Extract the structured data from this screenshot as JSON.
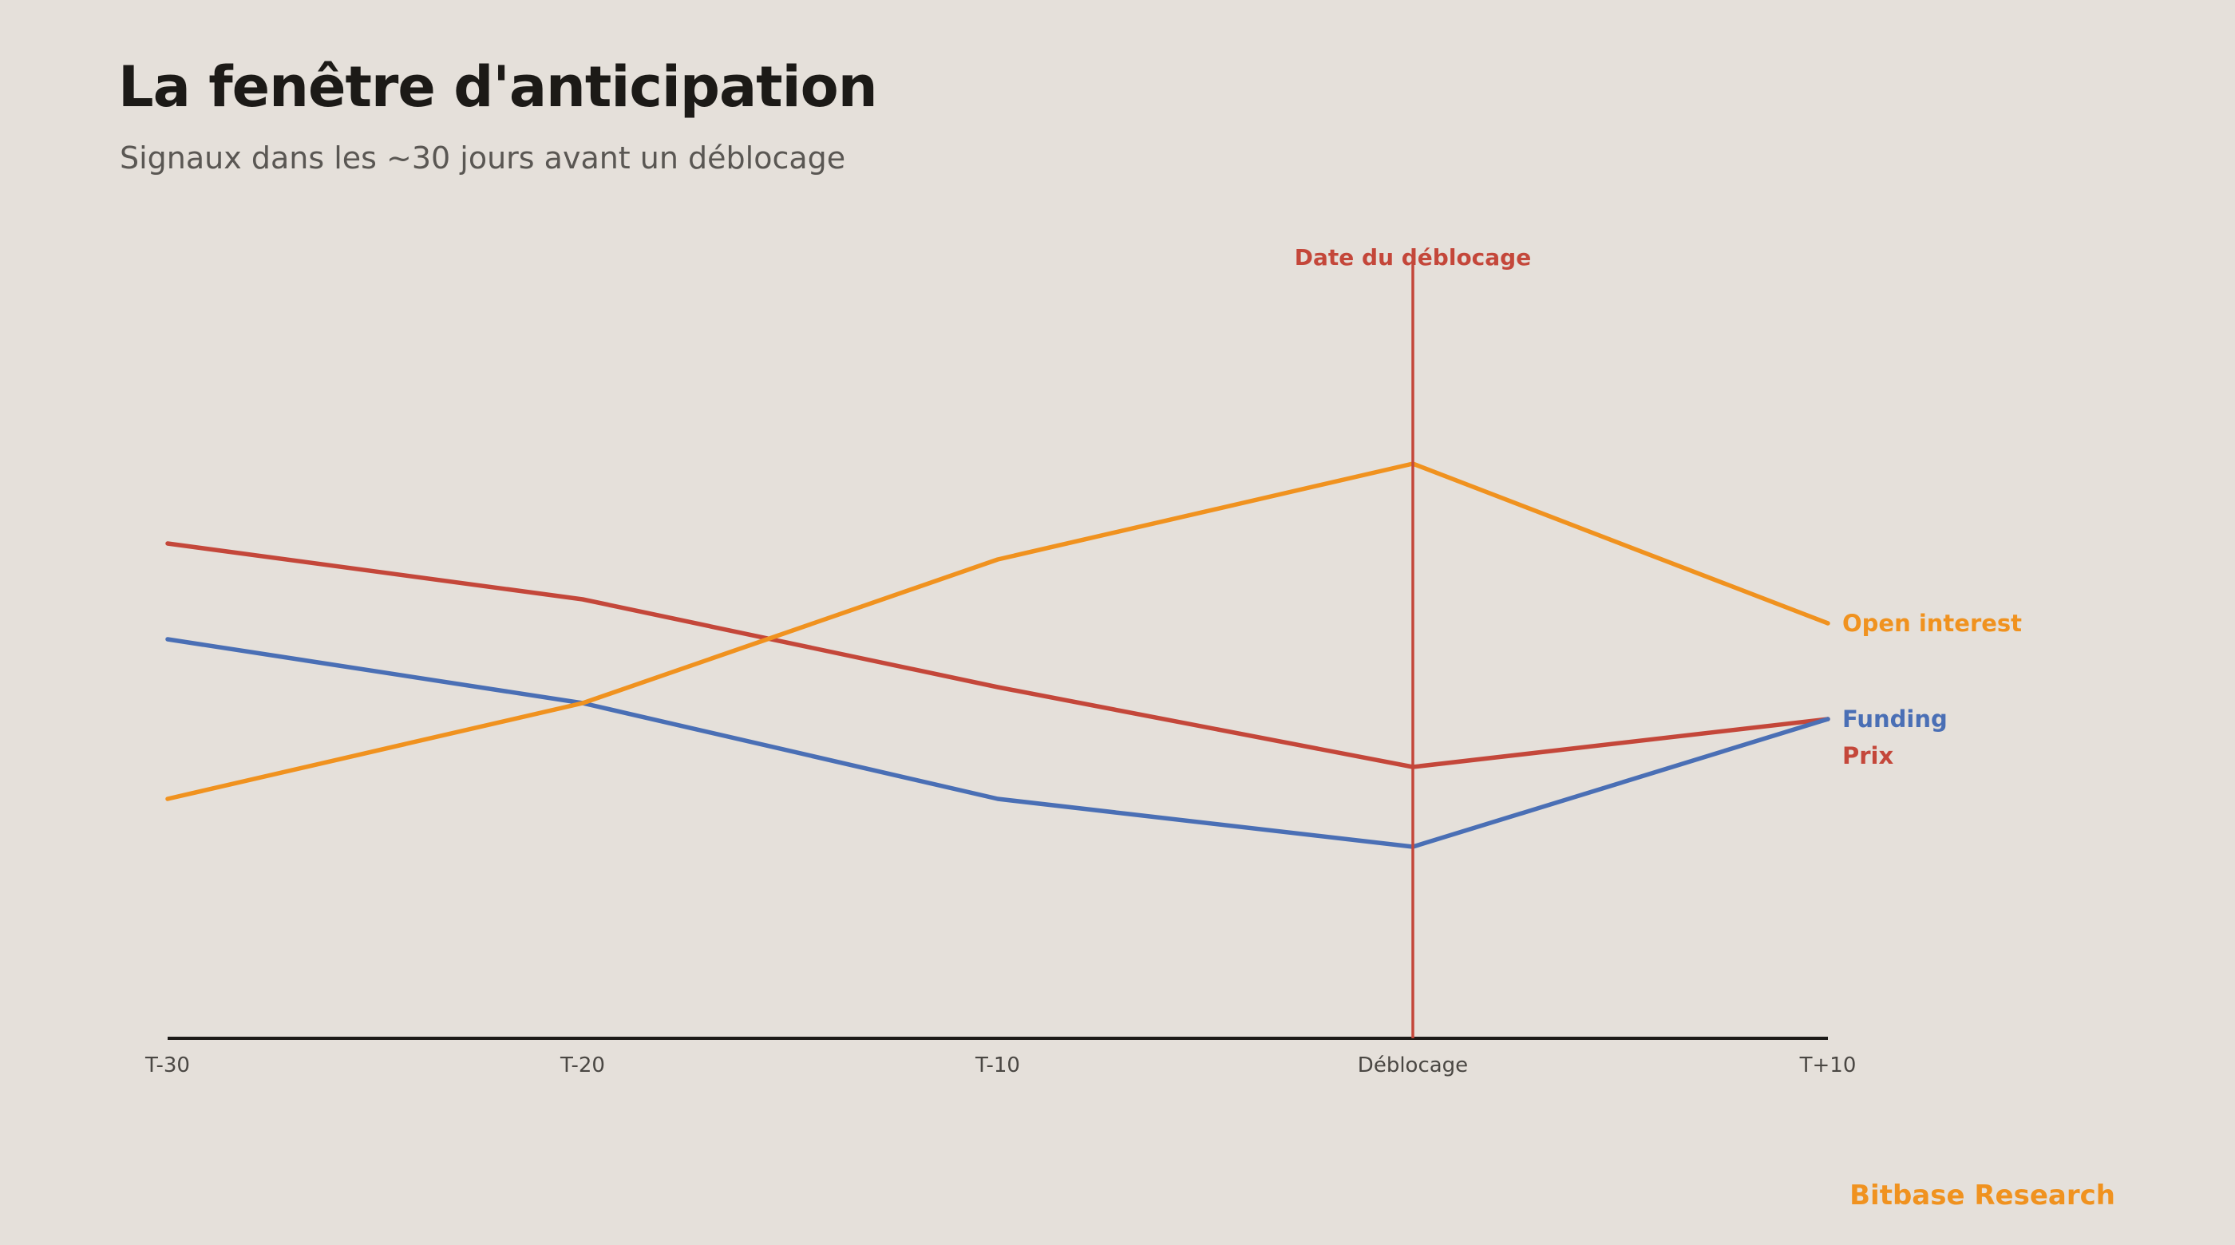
{
  "header": {
    "title": "La fenêtre d'anticipation",
    "subtitle": "Signaux dans les ~30 jours avant un déblocage"
  },
  "footer": {
    "brand": "Bitbase Research"
  },
  "chart_data": {
    "type": "line",
    "categories": [
      "T-30",
      "T-20",
      "T-10",
      "Déblocage",
      "T+10"
    ],
    "ylim": [
      0,
      100
    ],
    "grid": false,
    "series": [
      {
        "name": "Open interest",
        "color": "#f0921f",
        "values": [
          30,
          42,
          60,
          72,
          52
        ]
      },
      {
        "name": "Funding",
        "color": "#4a6fb5",
        "values": [
          50,
          42,
          30,
          24,
          40
        ]
      },
      {
        "name": "Prix",
        "color": "#c4473a",
        "values": [
          62,
          55,
          44,
          34,
          40
        ]
      }
    ],
    "annotations": [
      {
        "category": "Déblocage",
        "label": "Date du déblocage",
        "color": "#c4473a"
      }
    ]
  }
}
